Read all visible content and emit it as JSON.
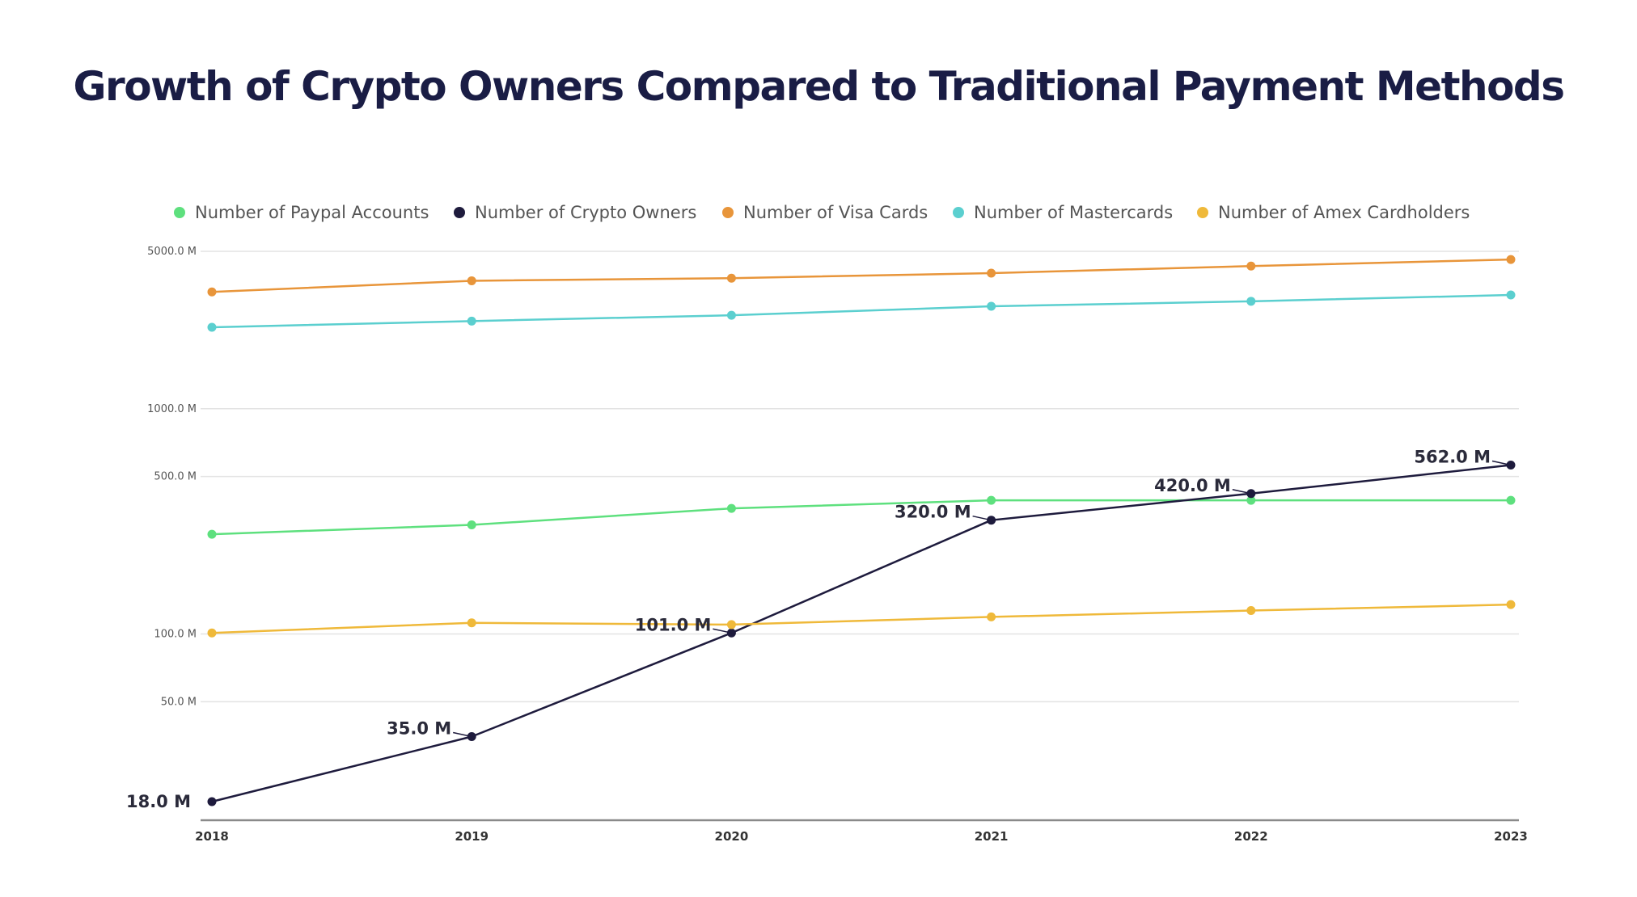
{
  "title": "Growth of Crypto Owners Compared to Traditional Payment Methods",
  "chart_data": {
    "type": "line",
    "title": "Growth of Crypto Owners Compared to Traditional Payment Methods",
    "xlabel": "",
    "ylabel": "",
    "yscale": "log",
    "ylim": [
      15,
      5000
    ],
    "grid": true,
    "legend_position": "top",
    "categories": [
      "2018",
      "2019",
      "2020",
      "2021",
      "2022",
      "2023"
    ],
    "y_ticks": [
      {
        "value": 5000,
        "label": "5000.0 M"
      },
      {
        "value": 1000,
        "label": "1000.0 M"
      },
      {
        "value": 500,
        "label": "500.0 M"
      },
      {
        "value": 100,
        "label": "100.0 M"
      },
      {
        "value": 50,
        "label": "50.0 M"
      }
    ],
    "series": [
      {
        "name": "Number of Paypal Accounts",
        "color": "#5ee07e",
        "values": [
          277,
          305,
          361,
          392,
          392,
          392
        ]
      },
      {
        "name": "Number of Crypto Owners",
        "color": "#1e1b3d",
        "values": [
          18,
          35,
          101,
          320,
          420,
          562
        ],
        "data_labels": [
          "18.0 M",
          "35.0 M",
          "101.0 M",
          "320.0 M",
          "420.0 M",
          "562.0 M"
        ]
      },
      {
        "name": "Number of Visa Cards",
        "color": "#e8953a",
        "values": [
          3300,
          3700,
          3800,
          4000,
          4300,
          4600
        ]
      },
      {
        "name": "Number of Mastercards",
        "color": "#5bcfcf",
        "values": [
          2300,
          2450,
          2600,
          2850,
          3000,
          3200
        ]
      },
      {
        "name": "Number of Amex Cardholders",
        "color": "#efb93a",
        "values": [
          101,
          112,
          110,
          119,
          127,
          135
        ]
      }
    ]
  }
}
